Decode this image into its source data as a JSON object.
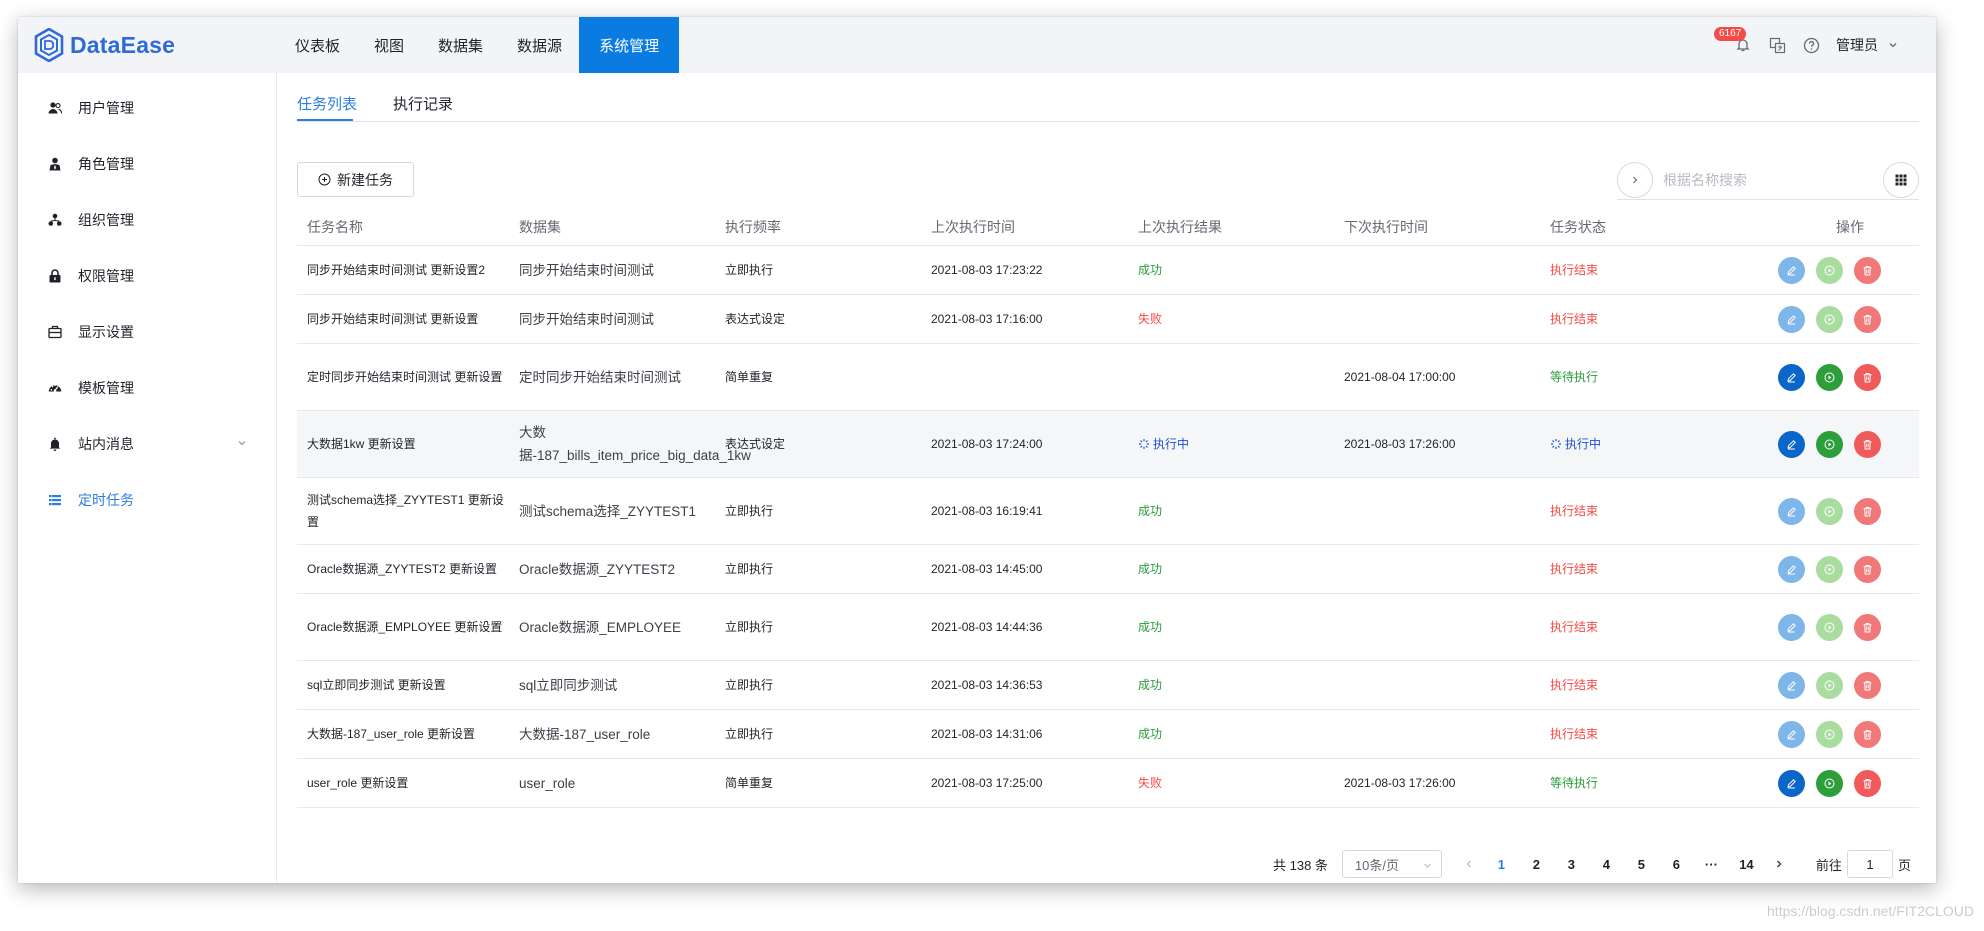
{
  "app": {
    "name": "DataEase"
  },
  "header": {
    "nav": [
      {
        "label": "仪表板"
      },
      {
        "label": "视图"
      },
      {
        "label": "数据集"
      },
      {
        "label": "数据源"
      },
      {
        "label": "系统管理",
        "active": true
      }
    ],
    "notify_count": "6167",
    "user": "管理员"
  },
  "sidebar": {
    "items": [
      {
        "label": "用户管理",
        "icon": "users-icon"
      },
      {
        "label": "角色管理",
        "icon": "role-icon"
      },
      {
        "label": "组织管理",
        "icon": "org-icon"
      },
      {
        "label": "权限管理",
        "icon": "lock-icon"
      },
      {
        "label": "显示设置",
        "icon": "display-icon"
      },
      {
        "label": "模板管理",
        "icon": "dashboard-icon"
      },
      {
        "label": "站内消息",
        "icon": "bell-icon"
      },
      {
        "label": "定时任务",
        "icon": "schedule-icon",
        "active": true
      }
    ]
  },
  "tabs": [
    {
      "label": "任务列表",
      "active": true
    },
    {
      "label": "执行记录"
    }
  ],
  "toolbar": {
    "new_task": "新建任务",
    "search_placeholder": "根据名称搜索"
  },
  "table": {
    "columns": [
      "任务名称",
      "数据集",
      "执行频率",
      "上次执行时间",
      "上次执行结果",
      "下次执行时间",
      "任务状态",
      "操作"
    ],
    "rows": [
      {
        "name": "同步开始结束时间测试 更新设置2",
        "dataset": "同步开始结束时间测试",
        "freq": "立即执行",
        "last_time": "2021-08-03 17:23:22",
        "last_result": "成功",
        "next_time": "",
        "status": "执行结束"
      },
      {
        "name": "同步开始结束时间测试 更新设置",
        "dataset": "同步开始结束时间测试",
        "freq": "表达式设定",
        "last_time": "2021-08-03 17:16:00",
        "last_result": "失败",
        "next_time": "",
        "status": "执行结束"
      },
      {
        "name": "定时同步开始结束时间测试 更新设置",
        "dataset": "定时同步开始结束时间测试",
        "freq": "简单重复",
        "last_time": "",
        "last_result": "",
        "next_time": "2021-08-04 17:00:00",
        "status": "等待执行"
      },
      {
        "name": "大数据1kw 更新设置",
        "dataset": "大数据-187_bills_item_price_big_data_1kw",
        "freq": "表达式设定",
        "last_time": "2021-08-03 17:24:00",
        "last_result": "执行中",
        "next_time": "2021-08-03 17:26:00",
        "status": "执行中"
      },
      {
        "name": "测试schema选择_ZYYTEST1 更新设置",
        "dataset": "测试schema选择_ZYYTEST1",
        "freq": "立即执行",
        "last_time": "2021-08-03 16:19:41",
        "last_result": "成功",
        "next_time": "",
        "status": "执行结束"
      },
      {
        "name": "Oracle数据源_ZYYTEST2 更新设置",
        "dataset": "Oracle数据源_ZYYTEST2",
        "freq": "立即执行",
        "last_time": "2021-08-03 14:45:00",
        "last_result": "成功",
        "next_time": "",
        "status": "执行结束"
      },
      {
        "name": "Oracle数据源_EMPLOYEE 更新设置",
        "dataset": "Oracle数据源_EMPLOYEE",
        "freq": "立即执行",
        "last_time": "2021-08-03 14:44:36",
        "last_result": "成功",
        "next_time": "",
        "status": "执行结束"
      },
      {
        "name": "sql立即同步测试 更新设置",
        "dataset": "sql立即同步测试",
        "freq": "立即执行",
        "last_time": "2021-08-03 14:36:53",
        "last_result": "成功",
        "next_time": "",
        "status": "执行结束"
      },
      {
        "name": "大数据-187_user_role 更新设置",
        "dataset": "大数据-187_user_role",
        "freq": "立即执行",
        "last_time": "2021-08-03 14:31:06",
        "last_result": "成功",
        "next_time": "",
        "status": "执行结束"
      },
      {
        "name": "user_role 更新设置",
        "dataset": "user_role",
        "freq": "简单重复",
        "last_time": "2021-08-03 17:25:00",
        "last_result": "失败",
        "next_time": "2021-08-03 17:26:00",
        "status": "等待执行"
      }
    ]
  },
  "pagination": {
    "total": "共 138 条",
    "page_size": "10条/页",
    "pages": [
      "1",
      "2",
      "3",
      "4",
      "5",
      "6",
      "···",
      "14"
    ],
    "current": "1",
    "goto_prefix": "前往",
    "goto_value": "1",
    "goto_suffix": "页"
  },
  "watermark": "https://blog.csdn.net/FIT2CLOUD",
  "colors": {
    "primary": "#2b7fde",
    "nav_active_bg": "#0a7be0",
    "success": "#2a9b3d",
    "danger": "#f54a45",
    "running": "#1f4fd1"
  }
}
